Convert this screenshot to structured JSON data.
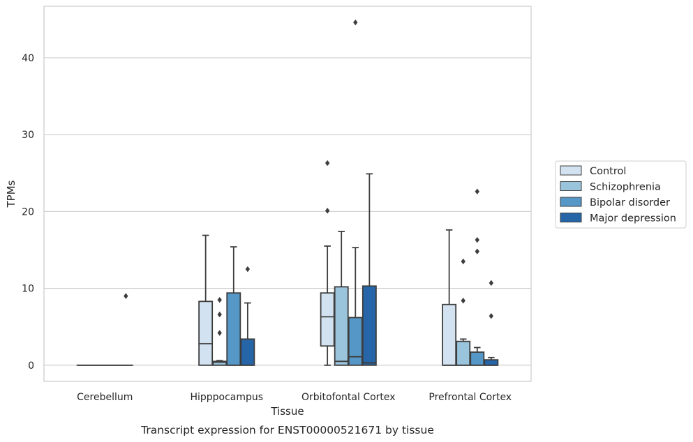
{
  "chart_data": {
    "type": "box",
    "title": "Transcript expression for ENST00000521671 by tissue",
    "xlabel": "Tissue",
    "ylabel": "TPMs",
    "ylim": [
      -2.1,
      46.7
    ],
    "yticks": [
      0,
      10,
      20,
      30,
      40
    ],
    "grid": "y",
    "legend_position": "right",
    "categories": [
      "Cerebellum",
      "Hipppocampus",
      "Orbitofontal Cortex",
      "Prefrontal Cortex"
    ],
    "series": [
      {
        "name": "Control",
        "color": "#d3e2f0",
        "boxes": [
          {
            "q1": 0,
            "median": 0,
            "q3": 0,
            "whisker_low": 0,
            "whisker_high": 0,
            "outliers": []
          },
          {
            "q1": 0,
            "median": 2.8,
            "q3": 8.3,
            "whisker_low": 0,
            "whisker_high": 16.9,
            "outliers": []
          },
          {
            "q1": 2.5,
            "median": 6.3,
            "q3": 9.4,
            "whisker_low": 0,
            "whisker_high": 15.5,
            "outliers": [
              20.1,
              26.3
            ]
          },
          {
            "q1": 0,
            "median": 0,
            "q3": 7.9,
            "whisker_low": 0,
            "whisker_high": 17.6,
            "outliers": []
          }
        ]
      },
      {
        "name": "Schizophrenia",
        "color": "#9ac3dc",
        "boxes": [
          {
            "q1": 0,
            "median": 0,
            "q3": 0,
            "whisker_low": 0,
            "whisker_high": 0,
            "outliers": []
          },
          {
            "q1": 0,
            "median": 0.4,
            "q3": 0.5,
            "whisker_low": 0,
            "whisker_high": 0.6,
            "outliers": [
              4.2,
              6.6,
              8.5
            ]
          },
          {
            "q1": 0,
            "median": 0.5,
            "q3": 10.2,
            "whisker_low": 0,
            "whisker_high": 17.4,
            "outliers": []
          },
          {
            "q1": 0,
            "median": 0,
            "q3": 3.1,
            "whisker_low": 0,
            "whisker_high": 3.4,
            "outliers": [
              8.4,
              13.5
            ]
          }
        ]
      },
      {
        "name": "Bipolar disorder",
        "color": "#5597c6",
        "boxes": [
          {
            "q1": 0,
            "median": 0,
            "q3": 0,
            "whisker_low": 0,
            "whisker_high": 0,
            "outliers": []
          },
          {
            "q1": 0,
            "median": 0,
            "q3": 9.4,
            "whisker_low": 0,
            "whisker_high": 15.4,
            "outliers": []
          },
          {
            "q1": 0,
            "median": 1.1,
            "q3": 6.2,
            "whisker_low": 0,
            "whisker_high": 15.3,
            "outliers": [
              44.6
            ]
          },
          {
            "q1": 0,
            "median": 0,
            "q3": 1.7,
            "whisker_low": 0,
            "whisker_high": 2.3,
            "outliers": [
              14.8,
              16.3,
              22.6
            ]
          }
        ]
      },
      {
        "name": "Major depression",
        "color": "#2666a8",
        "boxes": [
          {
            "q1": 0,
            "median": 0,
            "q3": 0,
            "whisker_low": 0,
            "whisker_high": 0,
            "outliers": [
              9.0
            ]
          },
          {
            "q1": 0,
            "median": 0,
            "q3": 3.4,
            "whisker_low": 0,
            "whisker_high": 8.1,
            "outliers": [
              12.5
            ]
          },
          {
            "q1": 0,
            "median": 0.3,
            "q3": 10.3,
            "whisker_low": 0,
            "whisker_high": 24.9,
            "outliers": []
          },
          {
            "q1": 0,
            "median": 0,
            "q3": 0.7,
            "whisker_low": 0,
            "whisker_high": 1.0,
            "outliers": [
              6.4,
              10.7
            ]
          }
        ]
      }
    ]
  }
}
